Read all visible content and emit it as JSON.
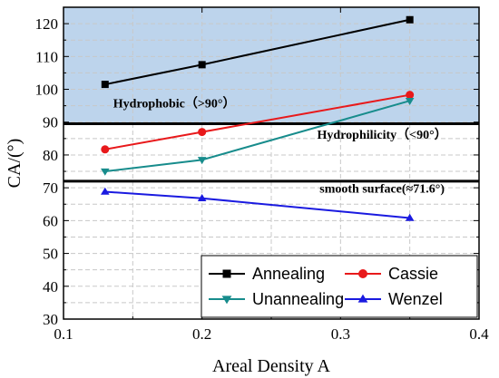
{
  "chart_data": {
    "type": "line",
    "xlabel": "Areal Density  A",
    "ylabel": "CA/(°)",
    "xlim": [
      0.1,
      0.4
    ],
    "ylim": [
      30,
      125
    ],
    "xticks": [
      "0.1",
      "0.2",
      "0.3",
      "0.4"
    ],
    "yticks": [
      "30",
      "40",
      "50",
      "60",
      "70",
      "80",
      "90",
      "100",
      "110",
      "120"
    ],
    "grid": true,
    "legend_position": "bottom-right",
    "series": [
      {
        "name": "Annealing",
        "color": "#000000",
        "marker": "square",
        "x": [
          0.13,
          0.2,
          0.35
        ],
        "y": [
          101.5,
          107.5,
          121.2
        ]
      },
      {
        "name": "Cassie",
        "color": "#e8191b",
        "marker": "circle",
        "x": [
          0.13,
          0.2,
          0.35
        ],
        "y": [
          81.7,
          87.0,
          98.3
        ]
      },
      {
        "name": "Unannealing",
        "color": "#178c8c",
        "marker": "triangle-down",
        "x": [
          0.13,
          0.2,
          0.35
        ],
        "y": [
          75.0,
          78.5,
          96.5
        ]
      },
      {
        "name": "Wenzel",
        "color": "#1a1ae0",
        "marker": "triangle-up",
        "x": [
          0.13,
          0.2,
          0.35
        ],
        "y": [
          68.8,
          66.8,
          60.8
        ]
      }
    ],
    "reference_lines": [
      {
        "y": 89.5,
        "color": "#000000"
      },
      {
        "y": 72.0,
        "color": "#000000"
      }
    ],
    "shaded_region": {
      "y_from": 89.5,
      "y_to": 125,
      "color": "#bdd4ec"
    },
    "annotations": [
      {
        "text": "Hydrophobic（>90°）",
        "x": 0.18,
        "y": 94.5
      },
      {
        "text": "Hydrophilicity（<90°）",
        "x": 0.33,
        "y": 85.0
      },
      {
        "text": "smooth surface(≈71.6°)",
        "x": 0.33,
        "y": 68.5
      }
    ]
  }
}
